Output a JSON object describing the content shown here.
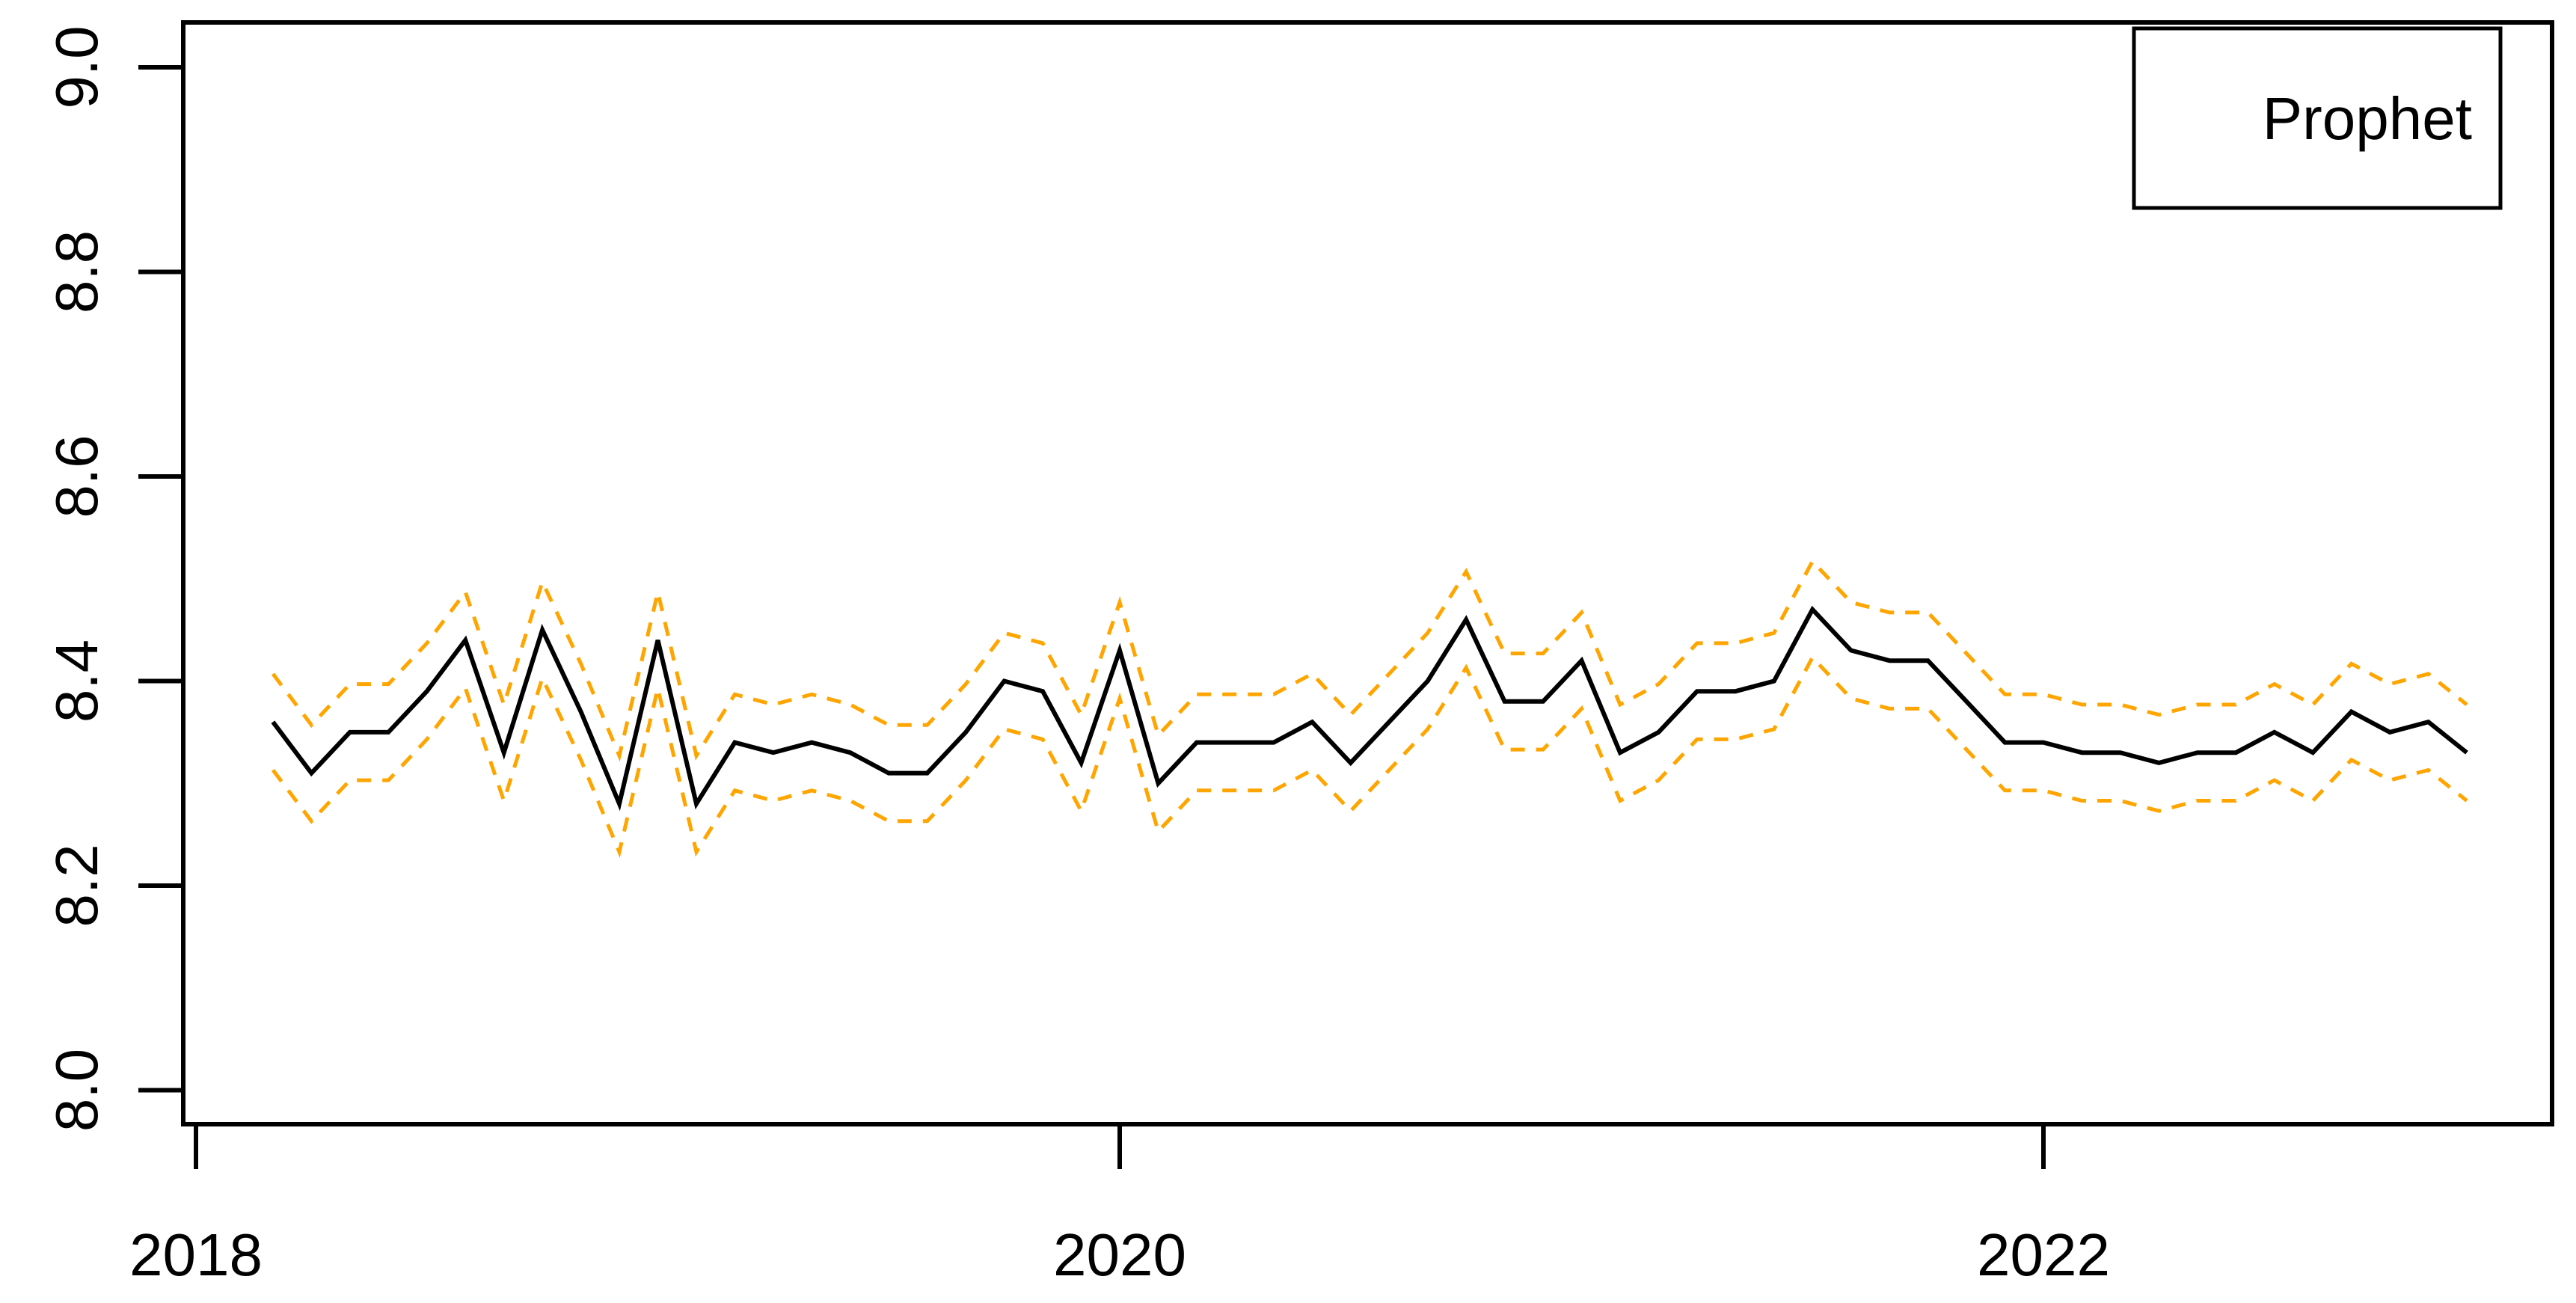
{
  "chart_data": {
    "type": "line",
    "title": "",
    "xlabel": "",
    "ylabel": "",
    "grid": false,
    "background": "#FFFFFF",
    "axis_color": "#000000",
    "xlim": [
      2017.97,
      2023.1
    ],
    "ylim": [
      7.96,
      9.04
    ],
    "x_ticks": [
      "2018",
      "2020",
      "2022"
    ],
    "x_tick_values": [
      2018,
      2020,
      2022
    ],
    "y_ticks": [
      "8.0",
      "8.2",
      "8.4",
      "8.6",
      "8.8",
      "9.0"
    ],
    "y_tick_values": [
      8.0,
      8.2,
      8.4,
      8.6,
      8.8,
      9.0
    ],
    "legend": {
      "label": "Prophet",
      "position": "topright"
    },
    "band_offset": 0.047,
    "series": [
      {
        "name": "Prophet forecast",
        "color": "#000000",
        "style": "solid",
        "x_start": 2018.166667,
        "x_step": 0.083333,
        "values": [
          8.36,
          8.31,
          8.35,
          8.35,
          8.39,
          8.44,
          8.33,
          8.45,
          8.37,
          8.28,
          8.44,
          8.28,
          8.34,
          8.33,
          8.34,
          8.33,
          8.31,
          8.31,
          8.35,
          8.4,
          8.39,
          8.32,
          8.43,
          8.3,
          8.34,
          8.34,
          8.34,
          8.36,
          8.32,
          8.36,
          8.4,
          8.46,
          8.38,
          8.38,
          8.42,
          8.33,
          8.35,
          8.39,
          8.39,
          8.4,
          8.47,
          8.43,
          8.42,
          8.42,
          8.38,
          8.34,
          8.34,
          8.33,
          8.33,
          8.32,
          8.33,
          8.33,
          8.35,
          8.33,
          8.37,
          8.35,
          8.36,
          8.33
        ]
      },
      {
        "name": "upper confidence bound",
        "color": "#FFA500",
        "style": "dashed",
        "derived": "values + band_offset"
      },
      {
        "name": "lower confidence bound",
        "color": "#FFA500",
        "style": "dashed",
        "derived": "values - band_offset"
      }
    ]
  }
}
